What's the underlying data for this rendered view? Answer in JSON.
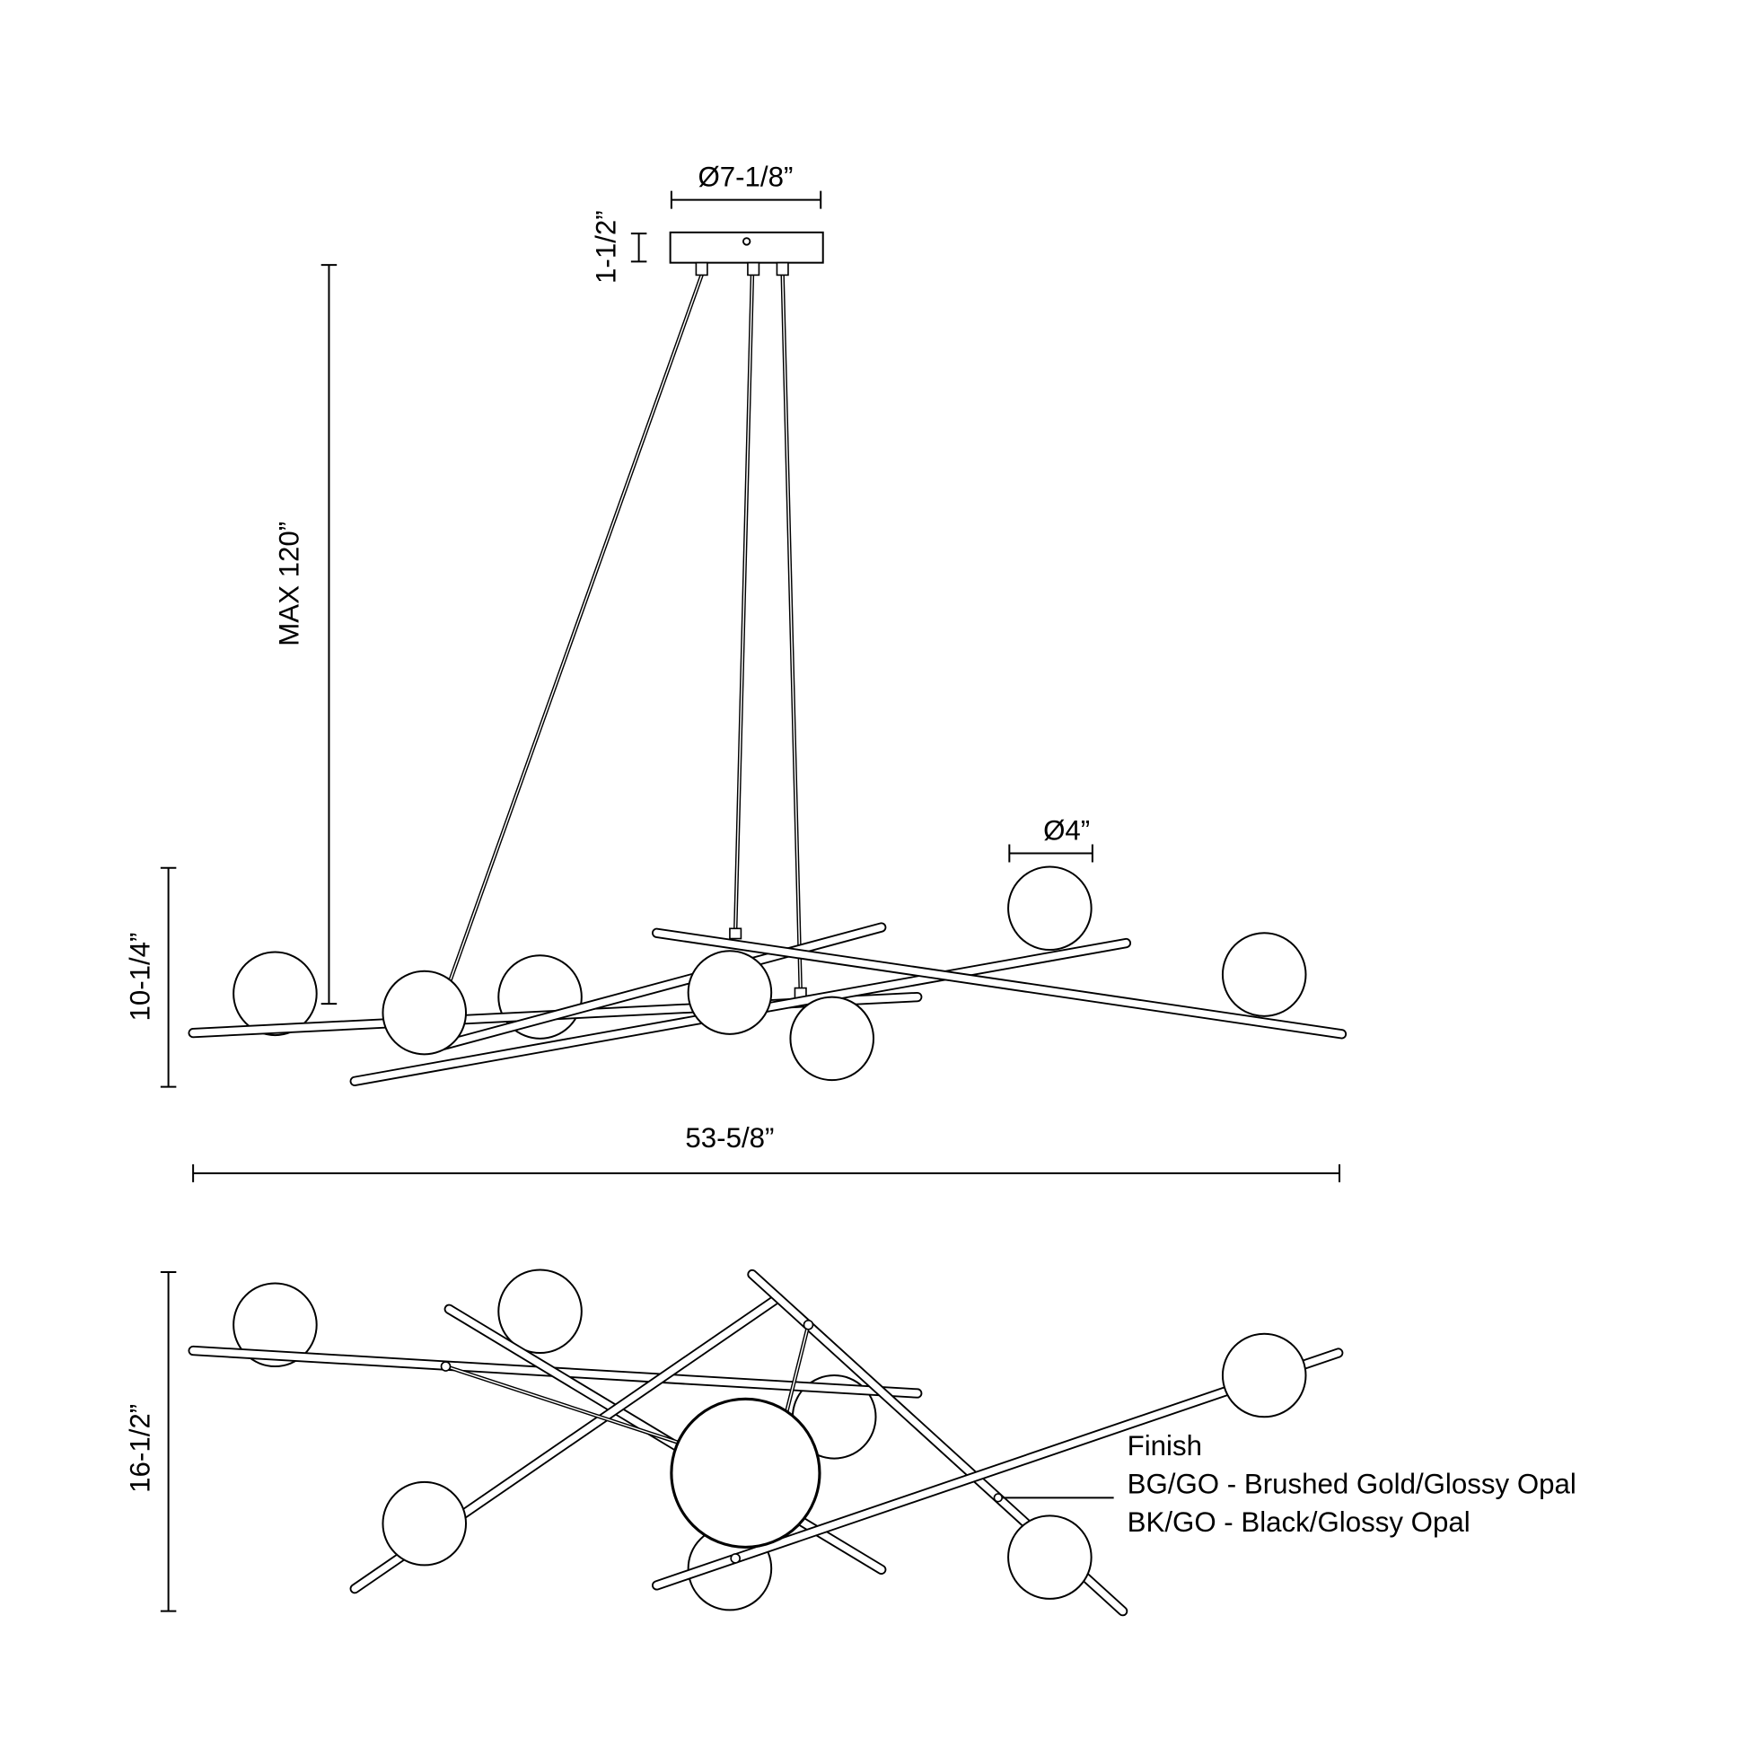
{
  "dimensions": {
    "canopy_diameter": "Ø7-1/8”",
    "canopy_height": "1-1/2”",
    "max_height": "MAX 120”",
    "fixture_height": "10-1/4”",
    "globe_diameter": "Ø4”",
    "width": "53-5/8”",
    "depth": "16-1/2”"
  },
  "finish": {
    "title": "Finish",
    "options": [
      "BG/GO - Brushed Gold/Glossy Opal",
      "BK/GO - Black/Glossy Opal"
    ]
  },
  "colors": {
    "line": "#000000",
    "background": "#ffffff"
  }
}
